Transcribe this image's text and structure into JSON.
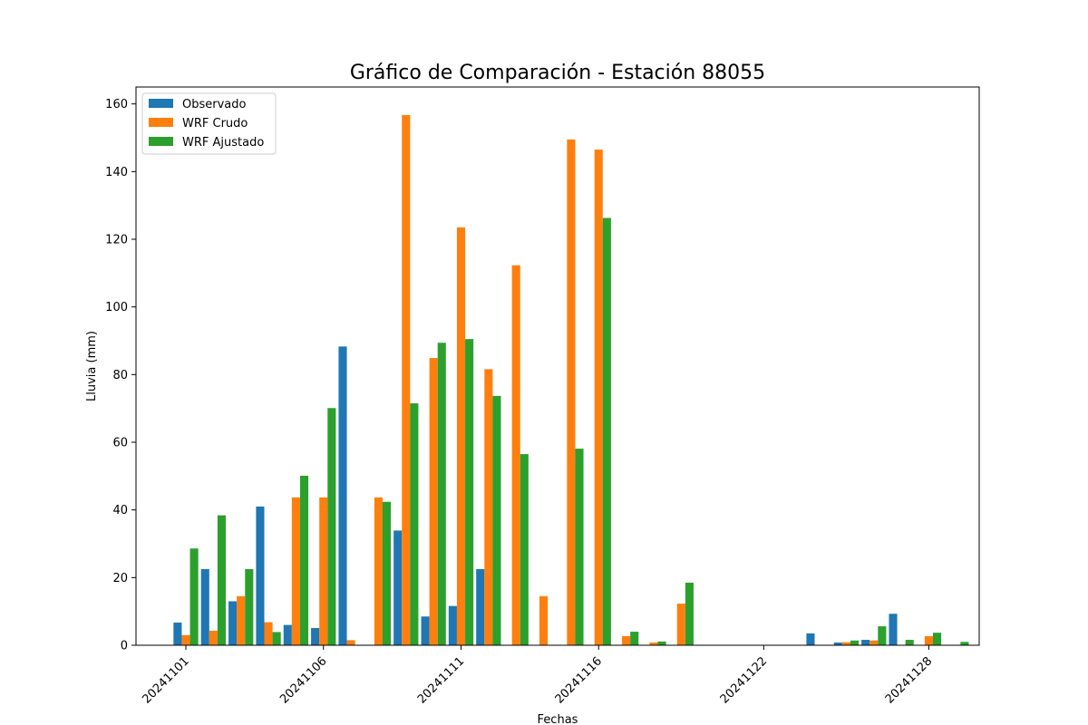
{
  "chart_data": {
    "type": "bar",
    "title": "Gráfico de Comparación - Estación 88055",
    "xlabel": "Fechas",
    "ylabel": "Lluvia (mm)",
    "ylim": [
      0,
      165
    ],
    "yticks": [
      0,
      20,
      40,
      60,
      80,
      100,
      120,
      140,
      160
    ],
    "categories": [
      "20241101",
      "20241102",
      "20241103",
      "20241104",
      "20241105",
      "20241106",
      "20241107",
      "20241108",
      "20241109",
      "20241110",
      "20241111",
      "20241112",
      "20241113",
      "20241114",
      "20241115",
      "20241116",
      "20241117",
      "20241118",
      "20241119",
      "20241120",
      "20241121",
      "20241122",
      "20241123",
      "20241124",
      "20241125",
      "20241126",
      "20241127",
      "20241128",
      "20241129"
    ],
    "xtick_labels": [
      "20241101",
      "20241106",
      "20241111",
      "20241116",
      "20241122",
      "20241128"
    ],
    "xtick_categories": [
      "20241101",
      "20241106",
      "20241111",
      "20241116",
      "20241122",
      "20241128"
    ],
    "legend_position": "upper-left",
    "series": [
      {
        "name": "Observado",
        "color": "#1f77b4",
        "values": [
          6.7,
          22.5,
          13,
          41,
          6,
          5.1,
          88.3,
          null,
          33.9,
          8.5,
          11.6,
          22.5,
          null,
          null,
          null,
          null,
          null,
          null,
          null,
          null,
          null,
          null,
          null,
          3.5,
          0.8,
          1.6,
          9.3,
          null,
          null
        ]
      },
      {
        "name": "WRF Crudo",
        "color": "#ff7f0e",
        "values": [
          3,
          4.3,
          14.5,
          6.8,
          43.7,
          43.7,
          1.5,
          43.7,
          156.7,
          84.9,
          123.5,
          81.6,
          112.3,
          14.5,
          149.5,
          146.5,
          2.7,
          0.8,
          12.3,
          null,
          null,
          null,
          null,
          null,
          0.9,
          1.4,
          0.1,
          2.7,
          null
        ]
      },
      {
        "name": "WRF Ajustado",
        "color": "#2ca02c",
        "values": [
          28.6,
          38.4,
          22.5,
          3.9,
          50.1,
          70.1,
          null,
          42.4,
          71.5,
          89.4,
          90.5,
          73.7,
          56.5,
          null,
          58.1,
          126.3,
          4,
          1.1,
          18.5,
          null,
          null,
          null,
          null,
          null,
          1.4,
          5.6,
          1.6,
          3.7,
          1
        ]
      }
    ]
  }
}
